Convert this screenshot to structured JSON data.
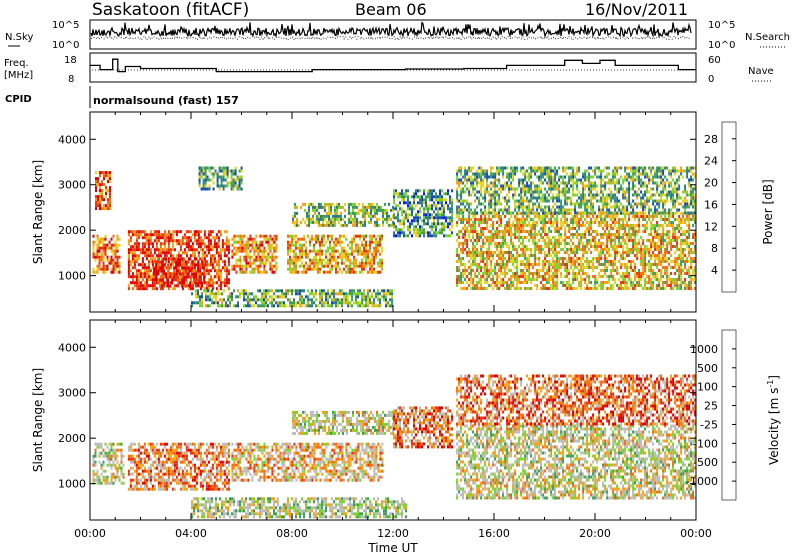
{
  "header": {
    "station": "Saskatoon (fitACF)",
    "beam": "Beam 06",
    "date": "16/Nov/2011"
  },
  "param_panels": {
    "nsky": {
      "left_label": "N.Sky",
      "right_label": "N.Search",
      "y_ticks": [
        "10^5",
        "10^0"
      ],
      "right_ticks": [
        "10^5",
        "10^0"
      ]
    },
    "freq": {
      "left_label_line1": "Freq.",
      "left_label_line2": "[MHz]",
      "right_label": "Nave",
      "y_ticks": [
        "18",
        "8"
      ],
      "right_ticks": [
        "60",
        "0"
      ],
      "freq_steps": [
        {
          "t0": 0.0,
          "t1": 0.4,
          "v": 14
        },
        {
          "t0": 0.4,
          "t1": 0.9,
          "v": 12
        },
        {
          "t0": 0.9,
          "t1": 1.1,
          "v": 17
        },
        {
          "t0": 1.1,
          "t1": 1.4,
          "v": 11
        },
        {
          "t0": 1.4,
          "t1": 2.0,
          "v": 13.5
        },
        {
          "t0": 2.0,
          "t1": 5.0,
          "v": 12.5
        },
        {
          "t0": 5.0,
          "t1": 8.8,
          "v": 11
        },
        {
          "t0": 8.8,
          "t1": 12.5,
          "v": 12
        },
        {
          "t0": 12.5,
          "t1": 14.8,
          "v": 12.3
        },
        {
          "t0": 14.8,
          "t1": 16.5,
          "v": 12.5
        },
        {
          "t0": 16.5,
          "t1": 18.8,
          "v": 14
        },
        {
          "t0": 18.8,
          "t1": 19.5,
          "v": 16.5
        },
        {
          "t0": 19.5,
          "t1": 20.2,
          "v": 15
        },
        {
          "t0": 20.2,
          "t1": 20.8,
          "v": 16.5
        },
        {
          "t0": 20.8,
          "t1": 23.3,
          "v": 14
        },
        {
          "t0": 23.3,
          "t1": 24.0,
          "v": 12
        }
      ]
    },
    "cpid": {
      "label": "CPID",
      "value": "normalsound (fast) 157"
    }
  },
  "chart_data": [
    {
      "type": "heatmap",
      "name": "power",
      "ylabel": "Slant Range [km]",
      "ylim": [
        200,
        4600
      ],
      "y_ticks": [
        1000,
        2000,
        3000,
        4000
      ],
      "xlim": [
        0,
        24
      ],
      "colorbar_label": "Power [dB]",
      "colorbar_ticks": [
        "4",
        "8",
        "12",
        "16",
        "20",
        "24",
        "28"
      ],
      "colorbar_colors": [
        "#0a14ff",
        "#1a4cb0",
        "#2f7a88",
        "#3f9f5a",
        "#7ed32a",
        "#e8d21a",
        "#f5a114",
        "#f06e10",
        "#e5350e",
        "#dd0000"
      ],
      "regions": [
        {
          "t0": 0.2,
          "t1": 0.8,
          "r0": 2500,
          "r1": 3300,
          "level": 0.8
        },
        {
          "t0": 0.1,
          "t1": 1.2,
          "r0": 1100,
          "r1": 1900,
          "level": 0.75
        },
        {
          "t0": 1.5,
          "t1": 5.5,
          "r0": 700,
          "r1": 2000,
          "level": 0.85
        },
        {
          "t0": 2.5,
          "t1": 4.5,
          "r0": 800,
          "r1": 1400,
          "level": 0.95
        },
        {
          "t0": 5.6,
          "t1": 7.4,
          "r0": 1100,
          "r1": 1900,
          "level": 0.7
        },
        {
          "t0": 7.8,
          "t1": 11.6,
          "r0": 1100,
          "r1": 1900,
          "level": 0.65
        },
        {
          "t0": 8.0,
          "t1": 12.0,
          "r0": 2100,
          "r1": 2600,
          "level": 0.45
        },
        {
          "t0": 4.0,
          "t1": 12.0,
          "r0": 350,
          "r1": 700,
          "level": 0.4
        },
        {
          "t0": 12.0,
          "t1": 14.3,
          "r0": 1900,
          "r1": 2900,
          "level": 0.3
        },
        {
          "t0": 14.5,
          "t1": 24.0,
          "r0": 700,
          "r1": 2400,
          "level": 0.6
        },
        {
          "t0": 14.5,
          "t1": 24.0,
          "r0": 2400,
          "r1": 3400,
          "level": 0.4
        },
        {
          "t0": 4.3,
          "t1": 6.0,
          "r0": 2900,
          "r1": 3400,
          "level": 0.35
        }
      ]
    },
    {
      "type": "heatmap",
      "name": "velocity",
      "ylabel": "Slant Range [km]",
      "ylim": [
        200,
        4600
      ],
      "y_ticks": [
        1000,
        2000,
        3000,
        4000
      ],
      "xlim": [
        0,
        24
      ],
      "x_ticks": [
        "00:00",
        "04:00",
        "08:00",
        "12:00",
        "16:00",
        "20:00",
        "00:00"
      ],
      "xlabel": "Time UT",
      "colorbar_label": "Velocity [m s^-1]",
      "colorbar_ticks": [
        "1000",
        "500",
        "100",
        "25",
        "-25",
        "-100",
        "-500",
        "-1000"
      ],
      "colorbar_colors": [
        "#1a3cc8",
        "#2a78a0",
        "#3f9f5a",
        "#7ed32a",
        "#bcbcbc",
        "#bcbcbc",
        "#f5a114",
        "#f06e10",
        "#e5350e",
        "#dd0000"
      ],
      "regions": [
        {
          "t0": 0.1,
          "t1": 1.3,
          "r0": 1000,
          "r1": 1900,
          "level": 0.5
        },
        {
          "t0": 1.5,
          "t1": 5.5,
          "r0": 900,
          "r1": 1900,
          "level": 0.7
        },
        {
          "t0": 5.6,
          "t1": 11.6,
          "r0": 1100,
          "r1": 1900,
          "level": 0.6
        },
        {
          "t0": 8.0,
          "t1": 12.0,
          "r0": 2100,
          "r1": 2600,
          "level": 0.5
        },
        {
          "t0": 12.0,
          "t1": 14.3,
          "r0": 1800,
          "r1": 2700,
          "level": 0.75
        },
        {
          "t0": 14.5,
          "t1": 24.0,
          "r0": 700,
          "r1": 2300,
          "level": 0.5
        },
        {
          "t0": 14.5,
          "t1": 24.0,
          "r0": 2300,
          "r1": 3400,
          "level": 0.75
        },
        {
          "t0": 4.0,
          "t1": 12.5,
          "r0": 300,
          "r1": 700,
          "level": 0.45
        }
      ]
    }
  ]
}
